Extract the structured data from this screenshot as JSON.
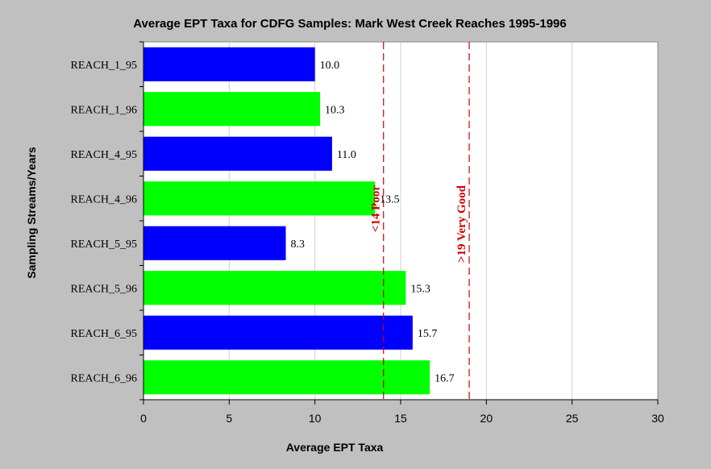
{
  "chart_data": {
    "type": "bar",
    "orientation": "horizontal",
    "title": "Average EPT Taxa for CDFG Samples: Mark West Creek Reaches 1995-1996",
    "xlabel": "Average EPT Taxa",
    "ylabel": "Sampling Streams/Years",
    "xlim": [
      0,
      30
    ],
    "xticks": [
      0,
      5,
      10,
      15,
      20,
      25,
      30
    ],
    "categories": [
      "REACH_1_95",
      "REACH_1_96",
      "REACH_4_95",
      "REACH_4_96",
      "REACH_5_95",
      "REACH_5_96",
      "REACH_6_95",
      "REACH_6_96"
    ],
    "values": [
      10.0,
      10.3,
      11.0,
      13.5,
      8.3,
      15.3,
      15.7,
      16.7
    ],
    "value_labels": [
      "10.0",
      "10.3",
      "11.0",
      "13.5",
      "8.3",
      "15.3",
      "15.7",
      "16.7"
    ],
    "bar_colors": [
      "#0000ff",
      "#00ff00",
      "#0000ff",
      "#00ff00",
      "#0000ff",
      "#00ff00",
      "#0000ff",
      "#00ff00"
    ],
    "grid": "vertical",
    "reference_lines": [
      {
        "value": 14,
        "label": "<14 Poor",
        "color": "#cc0000"
      },
      {
        "value": 19,
        "label": ">19 Very Good",
        "color": "#cc0000"
      }
    ],
    "background_color": "#c0c0c0",
    "plot_background_color": "#ffffff"
  }
}
